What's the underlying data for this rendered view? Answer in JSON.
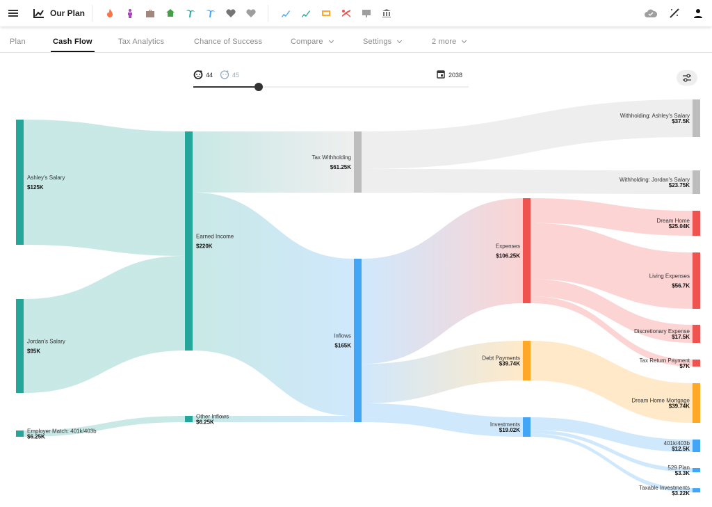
{
  "app": {
    "title": "Our Plan"
  },
  "toolbar": {
    "icons": [
      {
        "name": "fire-icon",
        "color": "#ff7043"
      },
      {
        "name": "person-icon",
        "color": "#ab47bc"
      },
      {
        "name": "briefcase-icon",
        "color": "#a1887f"
      },
      {
        "name": "home-search-icon",
        "color": "#43a047"
      },
      {
        "name": "palm-tree-icon",
        "color": "#26a69a"
      },
      {
        "name": "palm-tree-icon",
        "color": "#42a5f5"
      },
      {
        "name": "heart-pulse-icon",
        "color": "#757575"
      },
      {
        "name": "heart-pulse-icon",
        "color": "#9e9e9e"
      },
      {
        "name": "chart-growth-icon",
        "color": "#42a5f5"
      },
      {
        "name": "chart-growth-icon",
        "color": "#26a69a"
      },
      {
        "name": "money-off-icon",
        "color": "#ffa726"
      },
      {
        "name": "scissors-chart-icon",
        "color": "#ef5350"
      },
      {
        "name": "presentation-icon",
        "color": "#9e9e9e"
      },
      {
        "name": "bank-transfer-icon",
        "color": "#757575"
      }
    ],
    "right_icons": [
      "cloud-check-icon",
      "magic-off-icon",
      "account-icon"
    ]
  },
  "tabs": [
    {
      "label": "Plan",
      "active": false
    },
    {
      "label": "Cash Flow",
      "active": true
    },
    {
      "label": "Tax Analytics",
      "active": false
    },
    {
      "label": "Chance of Success",
      "active": false
    },
    {
      "label": "Compare",
      "active": false,
      "dropdown": true
    },
    {
      "label": "Settings",
      "active": false,
      "dropdown": true
    },
    {
      "label": "2 more",
      "active": false,
      "dropdown": true
    }
  ],
  "timeline": {
    "age_primary": "44",
    "age_secondary": "45",
    "year": "2038",
    "slider_fraction": 0.24
  },
  "colors": {
    "teal": "#26a69a",
    "gray": "#bdbdbd",
    "blue": "#42a5f5",
    "red": "#ef5350",
    "orange": "#ffa726"
  },
  "chart_data": {
    "type": "sankey",
    "units": "K USD",
    "nodes": [
      {
        "id": "ashley",
        "name": "Ashley's Salary",
        "value_label": "$125K",
        "value": 125,
        "color": "teal"
      },
      {
        "id": "jordan",
        "name": "Jordan's Salary",
        "value_label": "$95K",
        "value": 95,
        "color": "teal"
      },
      {
        "id": "employer",
        "name": "Employer Match: 401k/403b",
        "value_label": "$6.25K",
        "value": 6.25,
        "color": "teal"
      },
      {
        "id": "earned",
        "name": "Earned Income",
        "value_label": "$220K",
        "value": 220,
        "color": "teal"
      },
      {
        "id": "other",
        "name": "Other Inflows",
        "value_label": "$6.25K",
        "value": 6.25,
        "color": "teal"
      },
      {
        "id": "tax",
        "name": "Tax Withholding",
        "value_label": "$61.25K",
        "value": 61.25,
        "color": "gray"
      },
      {
        "id": "inflows",
        "name": "Inflows",
        "value_label": "$165K",
        "value": 165,
        "color": "blue"
      },
      {
        "id": "expenses",
        "name": "Expenses",
        "value_label": "$106.25K",
        "value": 106.25,
        "color": "red"
      },
      {
        "id": "debt",
        "name": "Debt Payments",
        "value_label": "$39.74K",
        "value": 39.74,
        "color": "orange"
      },
      {
        "id": "investments",
        "name": "Investments",
        "value_label": "$19.02K",
        "value": 19.02,
        "color": "blue"
      },
      {
        "id": "w_ashley",
        "name": "Withholding: Ashley's Salary",
        "value_label": "$37.5K",
        "value": 37.5,
        "color": "gray"
      },
      {
        "id": "w_jordan",
        "name": "Withholding: Jordan's Salary",
        "value_label": "$23.75K",
        "value": 23.75,
        "color": "gray"
      },
      {
        "id": "dream",
        "name": "Dream Home",
        "value_label": "$25.04K",
        "value": 25.04,
        "color": "red"
      },
      {
        "id": "living",
        "name": "Living Expenses",
        "value_label": "$56.7K",
        "value": 56.7,
        "color": "red"
      },
      {
        "id": "discretionary",
        "name": "Discretionary Expense",
        "value_label": "$17.5K",
        "value": 17.5,
        "color": "red"
      },
      {
        "id": "taxreturn",
        "name": "Tax Return Payment",
        "value_label": "$7K",
        "value": 7,
        "color": "red"
      },
      {
        "id": "mortgage",
        "name": "Dream Home Mortgage",
        "value_label": "$39.74K",
        "value": 39.74,
        "color": "orange"
      },
      {
        "id": "k401",
        "name": "401k/403b",
        "value_label": "$12.5K",
        "value": 12.5,
        "color": "blue"
      },
      {
        "id": "p529",
        "name": "529 Plan",
        "value_label": "$3.3K",
        "value": 3.3,
        "color": "blue"
      },
      {
        "id": "taxable",
        "name": "Taxable Investments",
        "value_label": "$3.22K",
        "value": 3.22,
        "color": "blue"
      }
    ],
    "links": [
      {
        "source": "ashley",
        "target": "earned",
        "value": 125
      },
      {
        "source": "jordan",
        "target": "earned",
        "value": 95
      },
      {
        "source": "employer",
        "target": "other",
        "value": 6.25
      },
      {
        "source": "earned",
        "target": "tax",
        "value": 61.25
      },
      {
        "source": "earned",
        "target": "inflows",
        "value": 158.75
      },
      {
        "source": "other",
        "target": "inflows",
        "value": 6.25
      },
      {
        "source": "tax",
        "target": "w_ashley",
        "value": 37.5
      },
      {
        "source": "tax",
        "target": "w_jordan",
        "value": 23.75
      },
      {
        "source": "inflows",
        "target": "expenses",
        "value": 106.25
      },
      {
        "source": "inflows",
        "target": "debt",
        "value": 39.74
      },
      {
        "source": "inflows",
        "target": "investments",
        "value": 19.02
      },
      {
        "source": "expenses",
        "target": "dream",
        "value": 25.04
      },
      {
        "source": "expenses",
        "target": "living",
        "value": 56.7
      },
      {
        "source": "expenses",
        "target": "discretionary",
        "value": 17.5
      },
      {
        "source": "expenses",
        "target": "taxreturn",
        "value": 7
      },
      {
        "source": "debt",
        "target": "mortgage",
        "value": 39.74
      },
      {
        "source": "investments",
        "target": "k401",
        "value": 12.5
      },
      {
        "source": "investments",
        "target": "p529",
        "value": 3.3
      },
      {
        "source": "investments",
        "target": "taxable",
        "value": 3.22
      }
    ]
  }
}
